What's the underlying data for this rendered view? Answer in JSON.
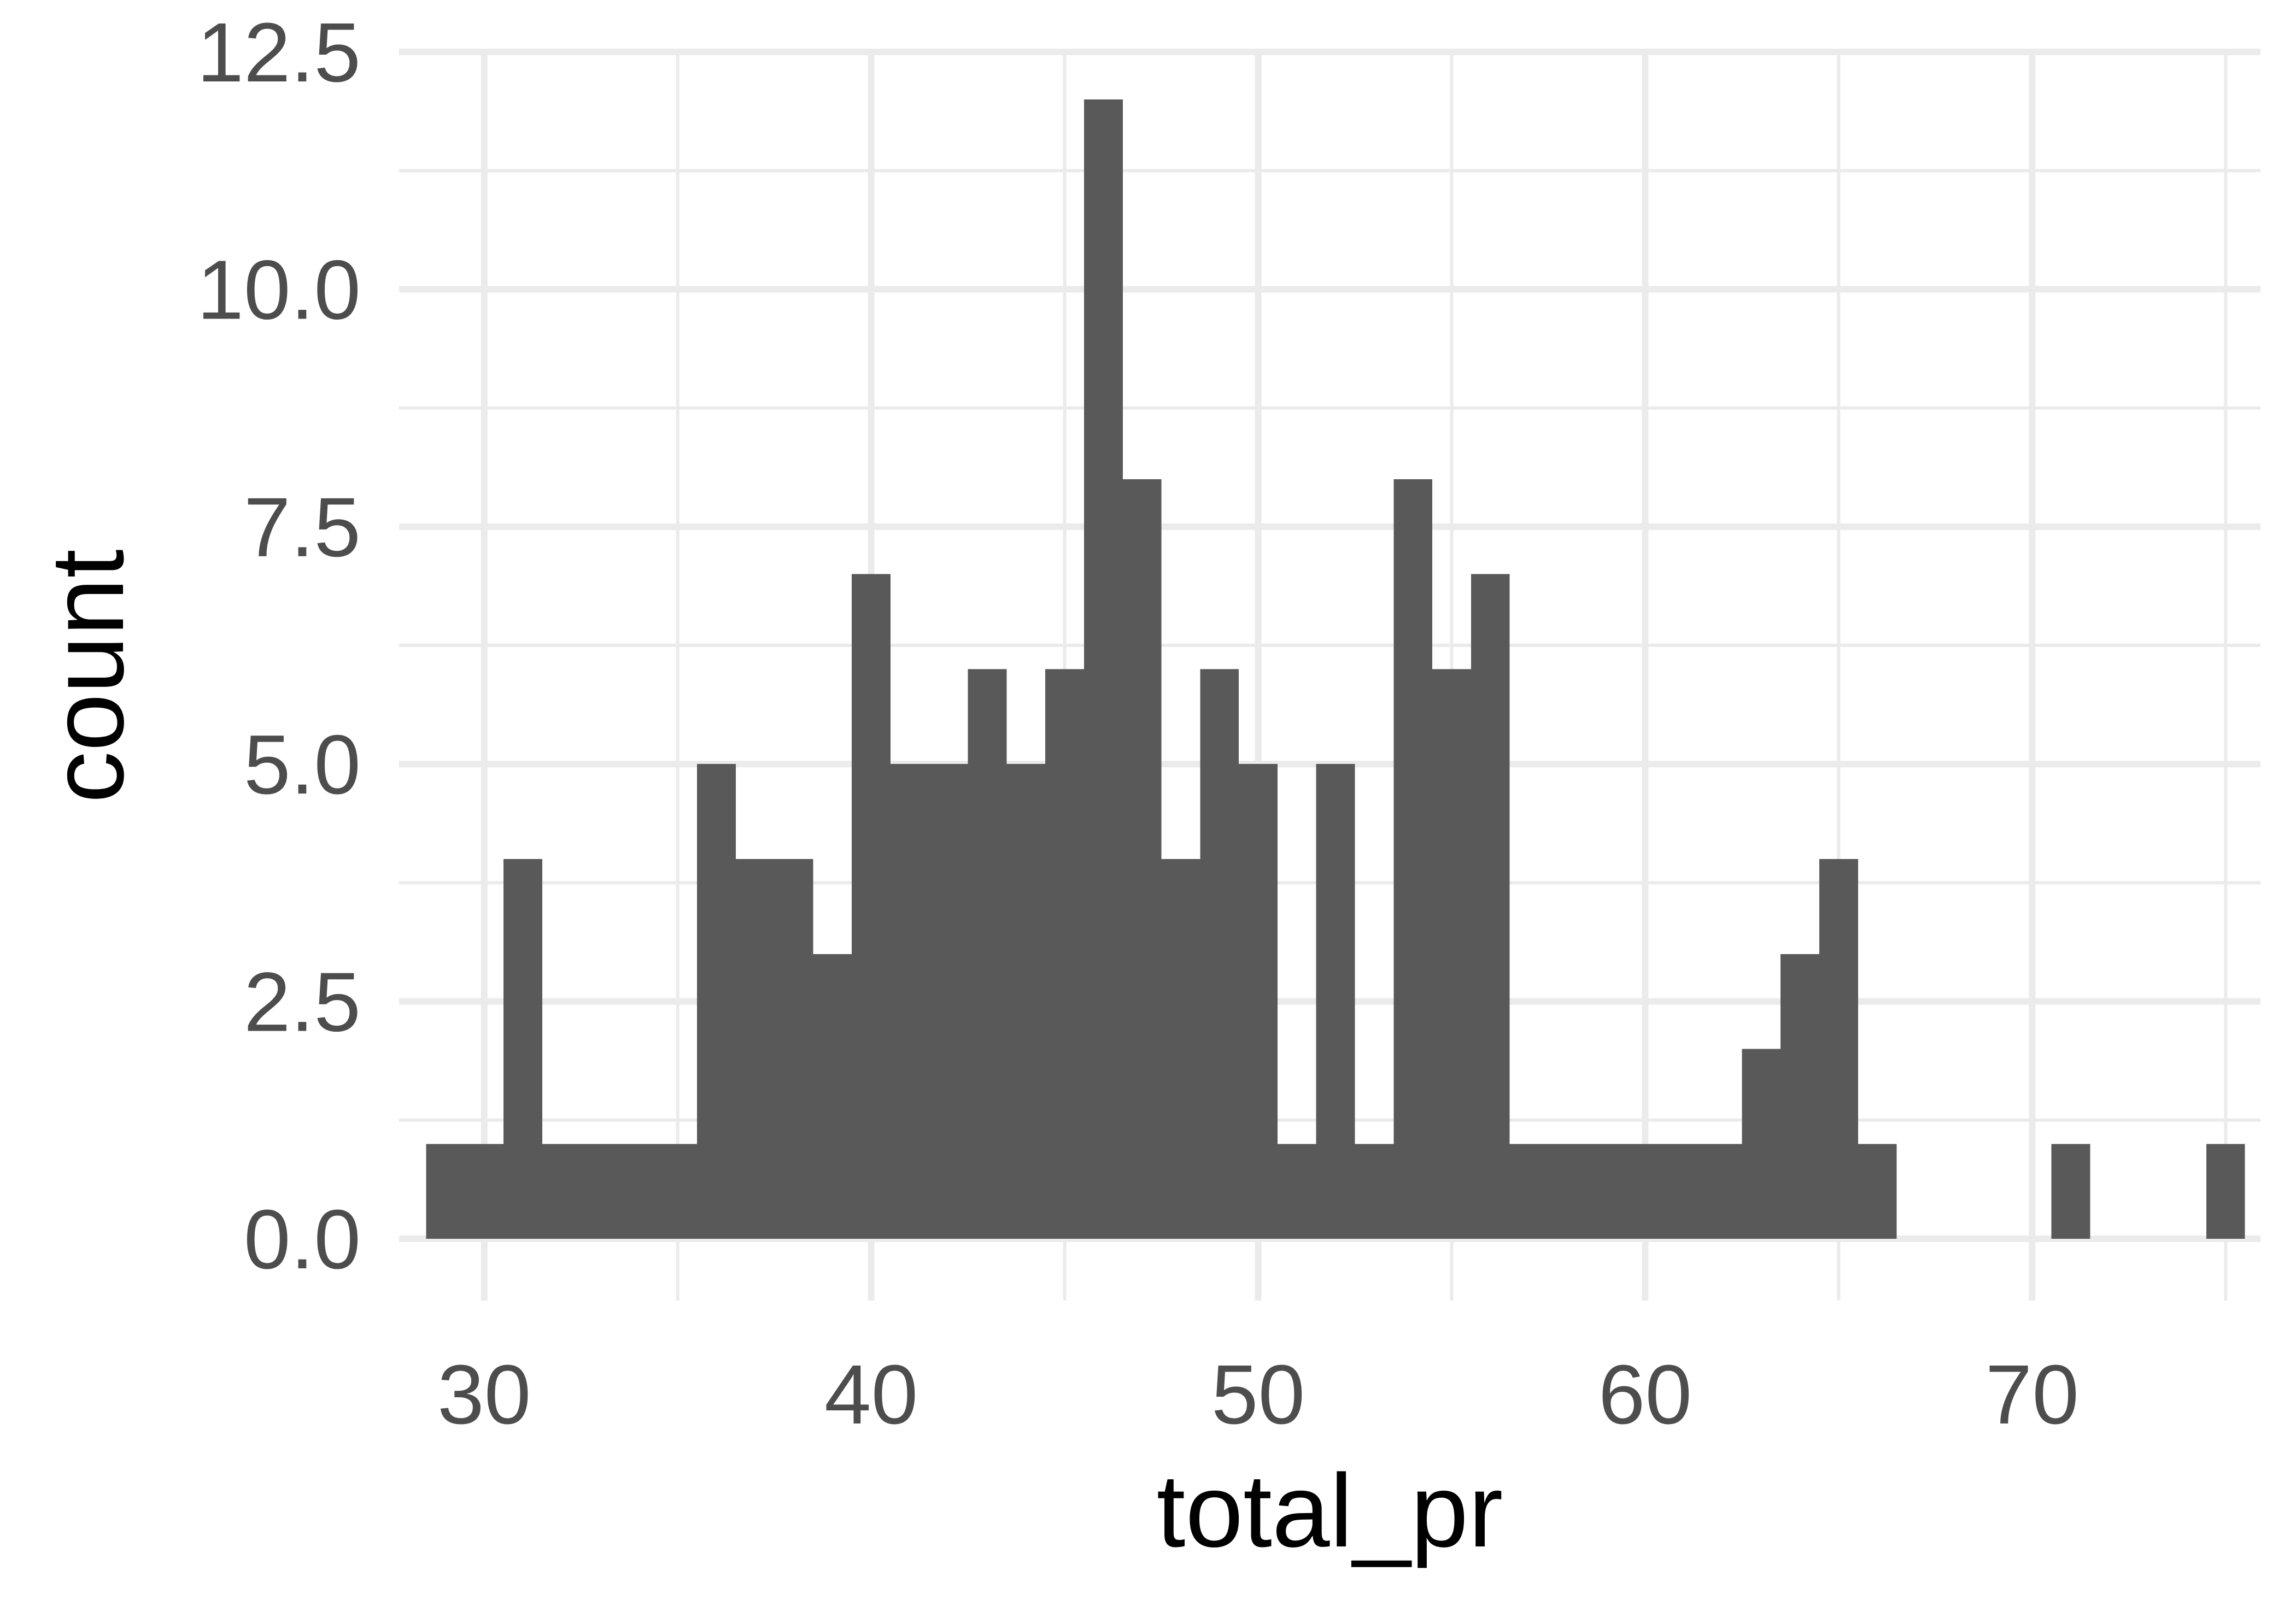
{
  "chart_data": {
    "type": "bar",
    "subtype": "histogram",
    "title": "",
    "xlabel": "total_pr",
    "ylabel": "count",
    "xlim": [
      27.8,
      75.9
    ],
    "ylim": [
      -0.65,
      12.5
    ],
    "x_ticks": [
      30,
      40,
      50,
      60,
      70
    ],
    "x_tick_labels": [
      "30",
      "40",
      "50",
      "60",
      "70"
    ],
    "y_ticks": [
      0,
      2.5,
      5,
      7.5,
      10,
      12.5
    ],
    "y_tick_labels": [
      "0.0",
      "2.5",
      "5.0",
      "7.5",
      "10.0",
      "12.5"
    ],
    "grid": true,
    "legend": "none",
    "bin_width": 1,
    "bin_start": 28.5,
    "values": [
      1,
      1,
      4,
      1,
      1,
      1,
      1,
      5,
      4,
      4,
      3,
      7,
      5,
      5,
      6,
      5,
      6,
      12,
      8,
      4,
      6,
      5,
      1,
      5,
      1,
      8,
      6,
      7,
      1,
      1,
      1,
      1,
      1,
      1,
      2,
      3,
      4,
      1,
      0,
      0,
      0,
      0,
      1,
      0,
      0,
      0,
      1
    ],
    "colors": {
      "bar": "#595959",
      "background": "#ffffff",
      "grid": "#ebebeb",
      "tick_text": "#4d4d4d",
      "axis_title": "#000000"
    }
  }
}
